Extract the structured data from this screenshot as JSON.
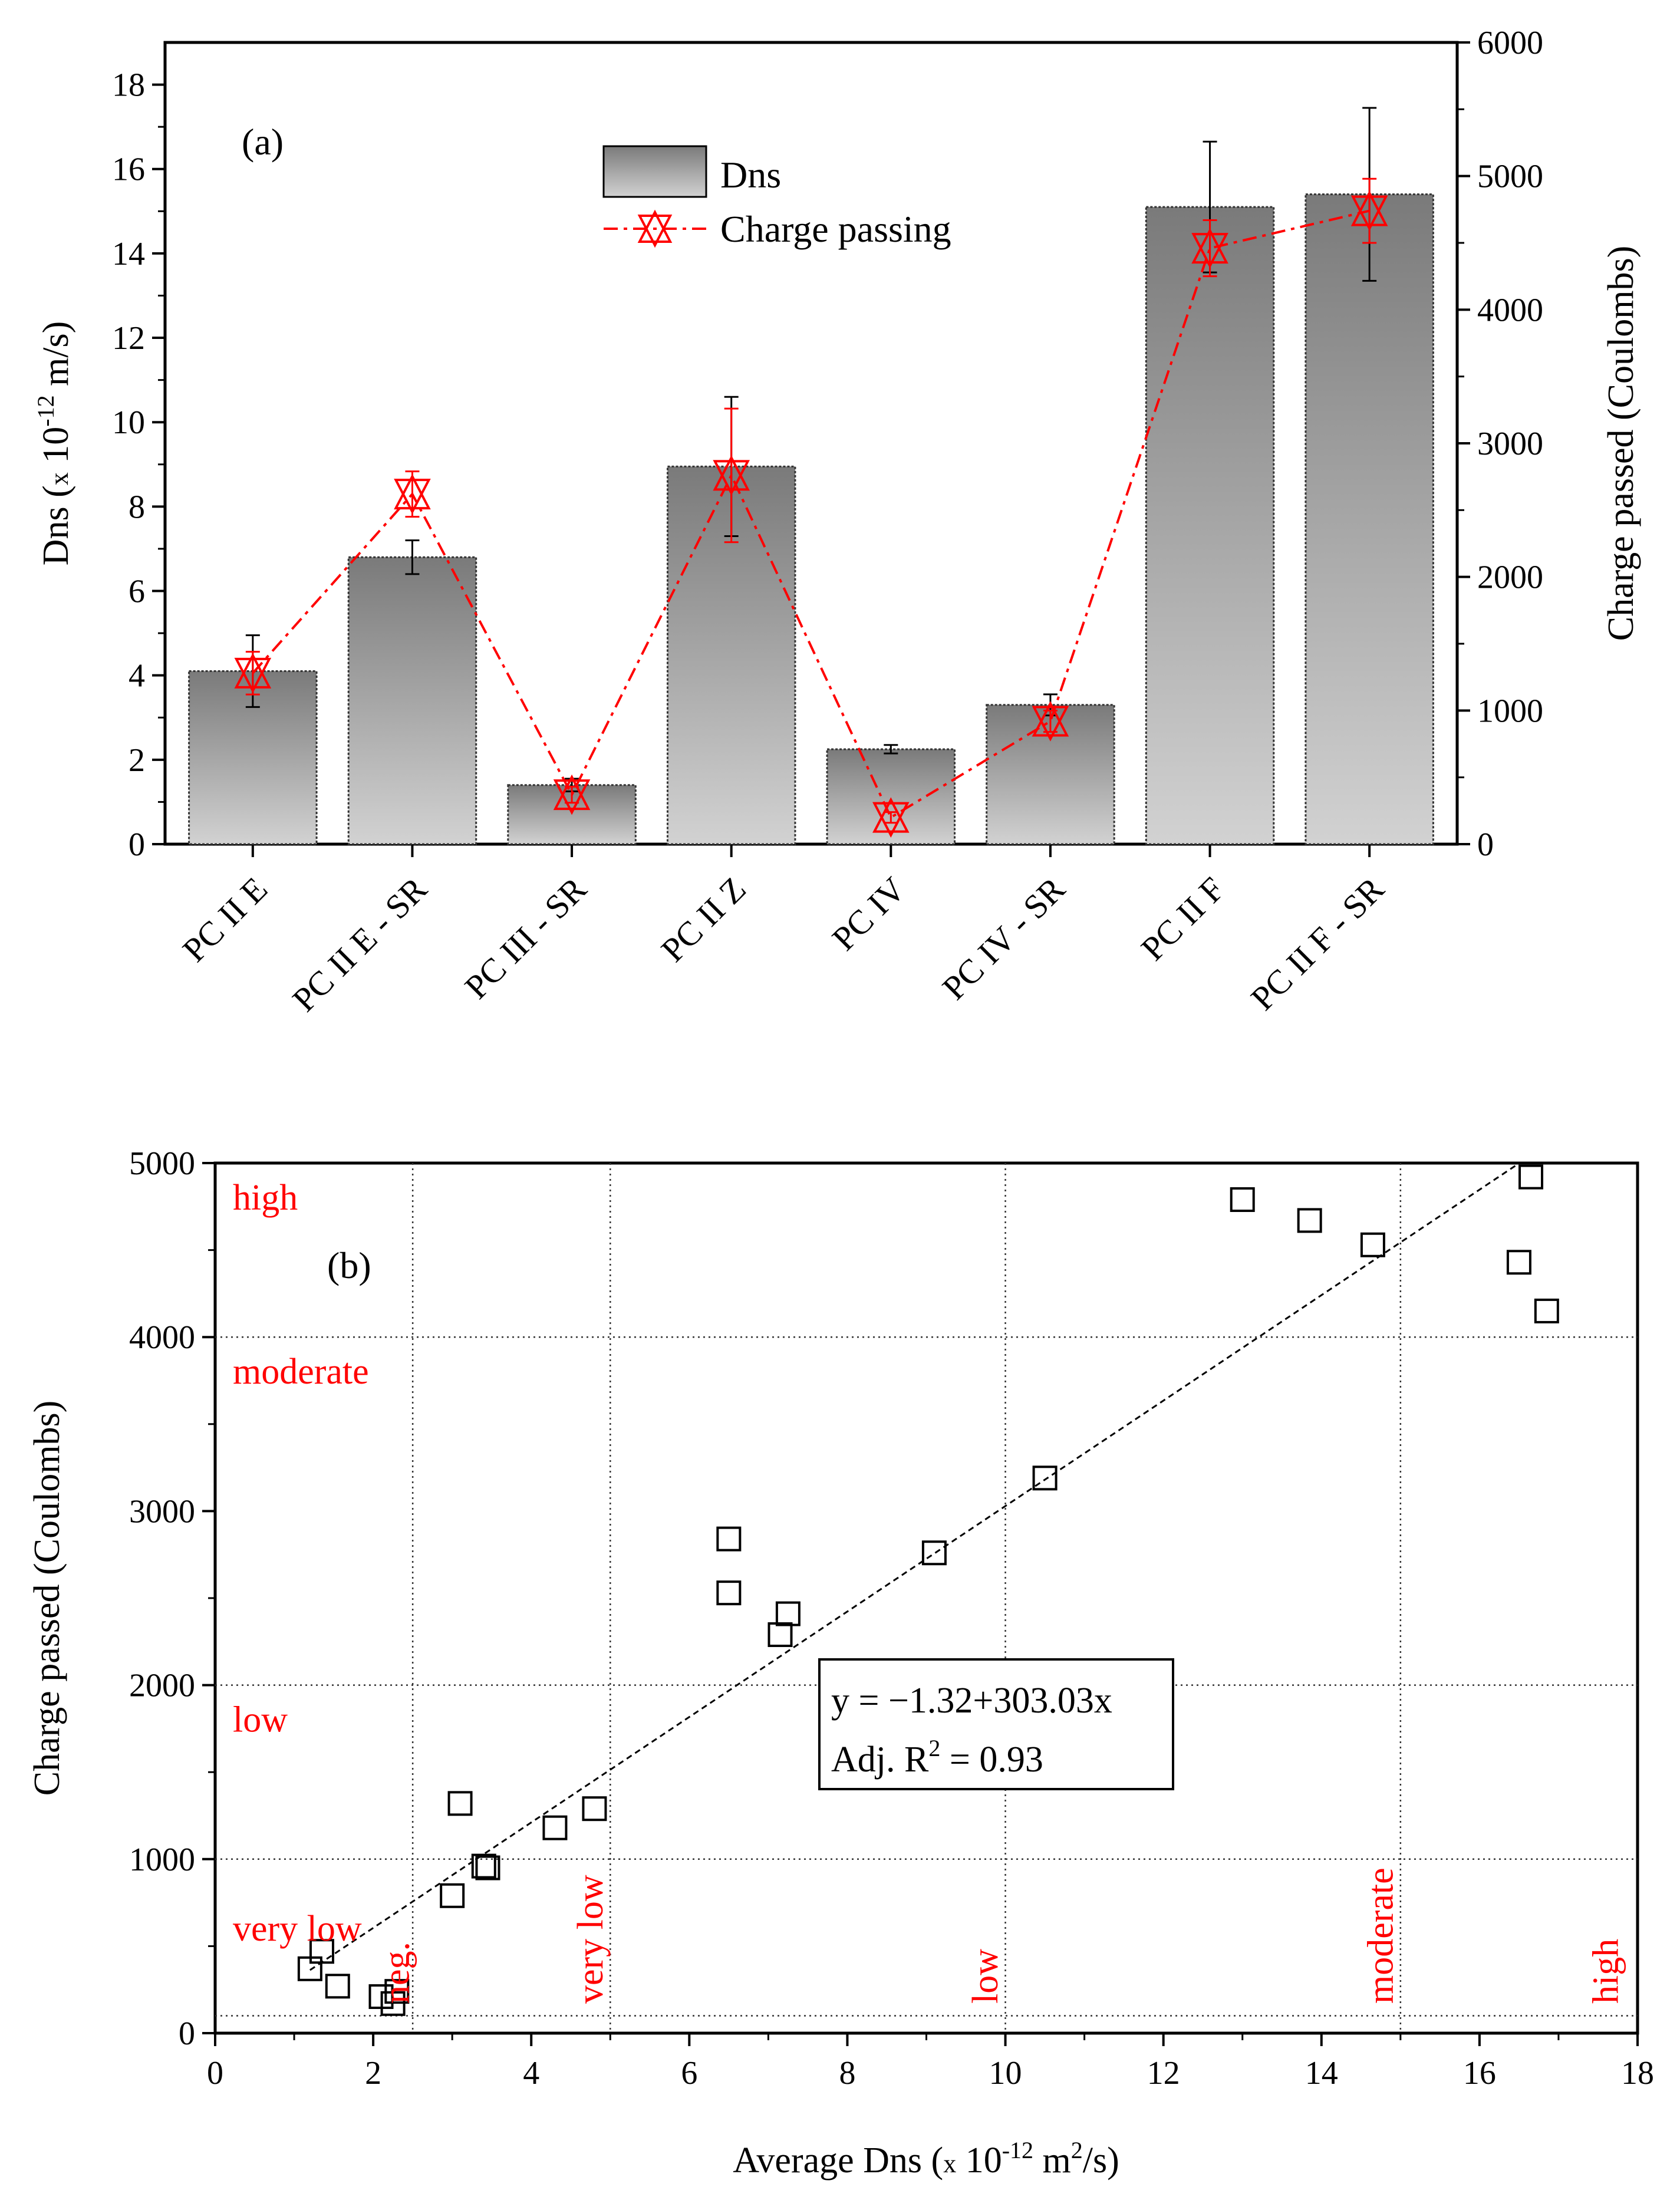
{
  "chart_data": [
    {
      "type": "bar",
      "panel_label": "(a)",
      "categories": [
        "PC II E",
        "PC II E - SR",
        "PC III - SR",
        "PC II Z",
        "PC IV",
        "PC IV - SR",
        "PC II F",
        "PC II F - SR"
      ],
      "ylabel": {
        "pre": "Dns (",
        "x": "x",
        "base": " 10",
        "exp": "-12",
        "post": " m/s)"
      },
      "y2label": "Charge passed (Coulombs)",
      "ylim": [
        0,
        19
      ],
      "y2lim": [
        0,
        6000
      ],
      "yticks": [
        "0",
        "2",
        "4",
        "6",
        "8",
        "10",
        "12",
        "14",
        "16",
        "18"
      ],
      "y2ticks": [
        "0",
        "1000",
        "2000",
        "3000",
        "4000",
        "5000",
        "6000"
      ],
      "legend": [
        "Dns",
        "Charge passing"
      ],
      "legend_position": "top-center",
      "series": [
        {
          "name": "Dns",
          "axis": "left",
          "kind": "bar",
          "values": [
            4.1,
            6.8,
            1.4,
            8.95,
            2.25,
            3.3,
            15.1,
            15.4
          ],
          "errors": [
            0.85,
            0.4,
            0.15,
            1.65,
            0.1,
            0.25,
            1.55,
            2.05
          ]
        },
        {
          "name": "Charge passing",
          "axis": "right",
          "kind": "line",
          "values": [
            1280,
            2620,
            370,
            2760,
            200,
            920,
            4460,
            4740
          ],
          "errors": [
            160,
            170,
            60,
            500,
            40,
            80,
            210,
            240
          ]
        }
      ],
      "colors": {
        "bar_top": "#7a7a7a",
        "bar_bottom": "#d2d2d2",
        "line": "#ff0000"
      }
    },
    {
      "type": "scatter",
      "panel_label": "(b)",
      "xlabel": {
        "pre": "Average Dns (",
        "x": "x",
        "base": " 10",
        "exp": "-12",
        "mid": " m",
        "exp2": "2",
        "post": "/s)"
      },
      "ylabel": "Charge passed (Coulombs)",
      "xlim": [
        0,
        18
      ],
      "ylim": [
        0,
        5000
      ],
      "xticks": [
        "0",
        "2",
        "4",
        "6",
        "8",
        "10",
        "12",
        "14",
        "16",
        "18"
      ],
      "yticks": [
        "0",
        "1000",
        "2000",
        "3000",
        "4000",
        "5000"
      ],
      "grid_x": [
        2.5,
        5,
        10,
        15
      ],
      "grid_y": [
        100,
        1000,
        2000,
        4000
      ],
      "x": [
        1.2,
        1.35,
        1.55,
        2.1,
        2.25,
        2.3,
        3.0,
        3.1,
        3.4,
        3.45,
        4.3,
        4.8,
        6.5,
        6.5,
        7.15,
        7.25,
        9.1,
        10.5,
        13.0,
        13.85,
        14.65,
        16.5,
        16.65,
        16.85
      ],
      "y": [
        370,
        470,
        270,
        210,
        170,
        240,
        790,
        1320,
        960,
        950,
        1180,
        1290,
        2530,
        2840,
        2290,
        2410,
        2760,
        3190,
        4790,
        4670,
        4530,
        4430,
        4920,
        4150
      ],
      "fit": {
        "intercept": -1.32,
        "slope": 303.03
      },
      "fit_box": {
        "line1": "y = −1.32+303.03x",
        "adj": "Adj. R",
        "adj_exp": "2",
        "adj_val": " = 0.93"
      },
      "y_class_labels": [
        "high",
        "moderate",
        "low",
        "very low"
      ],
      "y_class_values": [
        4800,
        3800,
        1800,
        600
      ],
      "x_class_labels": [
        "neg.",
        "very low",
        "low",
        "moderate",
        "high"
      ],
      "x_class_values": [
        2.3,
        4.75,
        9.75,
        14.75,
        17.6
      ]
    }
  ]
}
